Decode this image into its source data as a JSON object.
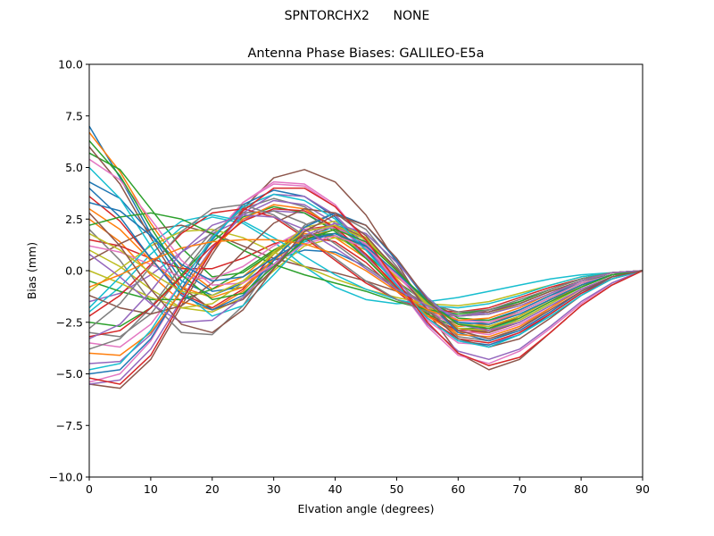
{
  "figure": {
    "suptitle": "SPNTORCHX2      NONE"
  },
  "chart_data": {
    "type": "line",
    "title": "Antenna Phase Biases: GALILEO-E5a",
    "xlabel": "Elvation angle (degrees)",
    "ylabel": "Bias (mm)",
    "xlim": [
      0,
      90
    ],
    "ylim": [
      -10,
      10
    ],
    "xticks": [
      0,
      10,
      20,
      30,
      40,
      50,
      60,
      70,
      80,
      90
    ],
    "xtick_labels": [
      "0",
      "10",
      "20",
      "30",
      "40",
      "50",
      "60",
      "70",
      "80",
      "90"
    ],
    "yticks": [
      -10,
      -7.5,
      -5,
      -2.5,
      0,
      2.5,
      5,
      7.5,
      10
    ],
    "ytick_labels": [
      "−10.0",
      "−7.5",
      "−5.0",
      "−2.5",
      "0.0",
      "2.5",
      "5.0",
      "7.5",
      "10.0"
    ],
    "grid": false,
    "legend": "none",
    "colors": [
      "#1f77b4",
      "#ff7f0e",
      "#2ca02c",
      "#d62728",
      "#9467bd",
      "#8c564b",
      "#e377c2",
      "#7f7f7f",
      "#bcbd22",
      "#17becf"
    ],
    "x": [
      0,
      5,
      10,
      15,
      20,
      25,
      30,
      35,
      40,
      45,
      50,
      55,
      60,
      65,
      70,
      75,
      80,
      85,
      90
    ],
    "series": [
      {
        "values": [
          7.0,
          4.5,
          1.8,
          -0.5,
          -1.2,
          -0.6,
          0.5,
          1.0,
          0.9,
          0.2,
          -0.8,
          -1.7,
          -2.2,
          -2.0,
          -1.5,
          -0.9,
          -0.4,
          -0.1,
          0.0
        ]
      },
      {
        "values": [
          6.7,
          4.8,
          2.3,
          0.2,
          -0.9,
          -0.3,
          1.0,
          1.8,
          1.6,
          0.6,
          -0.8,
          -2.0,
          -2.7,
          -2.6,
          -2.0,
          -1.3,
          -0.6,
          -0.2,
          0.0
        ]
      },
      {
        "values": [
          5.7,
          4.9,
          3.0,
          1.1,
          -0.3,
          -0.1,
          0.9,
          1.7,
          1.7,
          0.8,
          -0.5,
          -1.6,
          -2.2,
          -2.1,
          -1.6,
          -1.0,
          -0.5,
          -0.2,
          0.0
        ]
      },
      {
        "values": [
          3.6,
          2.4,
          0.6,
          -1.1,
          -1.8,
          -0.9,
          0.8,
          2.0,
          2.2,
          1.1,
          -0.6,
          -2.2,
          -3.0,
          -2.9,
          -2.2,
          -1.4,
          -0.7,
          -0.2,
          0.0
        ]
      },
      {
        "values": [
          -1.5,
          -1.1,
          -0.2,
          0.9,
          1.8,
          2.5,
          2.9,
          2.8,
          2.0,
          0.7,
          -0.7,
          -1.8,
          -2.2,
          -2.0,
          -1.5,
          -0.9,
          -0.4,
          -0.1,
          0.0
        ]
      },
      {
        "values": [
          -5.5,
          -5.7,
          -4.3,
          -1.7,
          0.8,
          3.0,
          4.5,
          4.9,
          4.3,
          2.7,
          0.4,
          -2.0,
          -4.0,
          -4.8,
          -4.3,
          -3.0,
          -1.7,
          -0.7,
          0.0
        ]
      },
      {
        "values": [
          -5.4,
          -5.0,
          -3.4,
          -0.9,
          1.5,
          3.3,
          4.2,
          4.1,
          3.1,
          1.4,
          -0.6,
          -2.4,
          -3.5,
          -3.6,
          -3.0,
          -2.0,
          -1.0,
          -0.3,
          0.0
        ]
      },
      {
        "values": [
          -3.0,
          -3.2,
          -2.1,
          -0.2,
          1.7,
          3.0,
          3.5,
          3.1,
          2.0,
          0.6,
          -0.9,
          -2.0,
          -2.6,
          -2.5,
          -1.9,
          -1.2,
          -0.5,
          -0.1,
          0.0
        ]
      },
      {
        "values": [
          1.0,
          0.2,
          -0.9,
          -1.8,
          -2.0,
          -1.3,
          0.0,
          1.2,
          1.6,
          1.0,
          -0.3,
          -1.5,
          -2.2,
          -2.1,
          -1.6,
          -1.0,
          -0.5,
          -0.1,
          0.0
        ]
      },
      {
        "values": [
          -2.0,
          -0.8,
          0.8,
          2.1,
          2.6,
          2.3,
          1.4,
          0.2,
          -0.8,
          -1.4,
          -1.6,
          -1.5,
          -1.3,
          -1.0,
          -0.7,
          -0.4,
          -0.2,
          -0.1,
          0.0
        ]
      },
      {
        "values": [
          4.3,
          3.5,
          1.8,
          0.0,
          -1.0,
          -0.8,
          0.3,
          1.4,
          1.8,
          1.2,
          -0.2,
          -1.6,
          -2.4,
          -2.4,
          -1.9,
          -1.2,
          -0.6,
          -0.2,
          0.0
        ]
      },
      {
        "values": [
          2.5,
          1.4,
          -0.2,
          -1.5,
          -1.9,
          -1.0,
          0.6,
          1.9,
          2.2,
          1.3,
          -0.4,
          -2.1,
          -3.0,
          -3.0,
          -2.3,
          -1.5,
          -0.7,
          -0.2,
          0.0
        ]
      },
      {
        "values": [
          -2.5,
          -2.7,
          -1.8,
          -0.2,
          1.4,
          2.6,
          3.1,
          2.8,
          1.9,
          0.6,
          -0.9,
          -2.1,
          -2.8,
          -2.8,
          -2.2,
          -1.4,
          -0.7,
          -0.2,
          0.0
        ]
      },
      {
        "values": [
          1.5,
          1.2,
          0.6,
          0.1,
          0.1,
          0.6,
          1.3,
          1.7,
          1.4,
          0.4,
          -1.0,
          -2.2,
          -2.9,
          -2.8,
          -2.2,
          -1.4,
          -0.7,
          -0.2,
          0.0
        ]
      },
      {
        "values": [
          -4.5,
          -4.4,
          -3.1,
          -1.0,
          1.1,
          2.7,
          3.4,
          3.2,
          2.3,
          1.0,
          -0.5,
          -1.9,
          -2.8,
          -2.9,
          -2.4,
          -1.6,
          -0.8,
          -0.2,
          0.0
        ]
      },
      {
        "values": [
          0.5,
          1.3,
          2.0,
          2.2,
          1.8,
          1.2,
          0.6,
          0.2,
          -0.1,
          -0.5,
          -1.0,
          -1.6,
          -2.0,
          -2.0,
          -1.6,
          -1.0,
          -0.5,
          -0.1,
          0.0
        ]
      },
      {
        "values": [
          -3.5,
          -3.7,
          -2.6,
          -0.6,
          1.6,
          3.3,
          4.3,
          4.2,
          3.2,
          1.4,
          -0.7,
          -2.7,
          -4.1,
          -4.5,
          -3.9,
          -2.8,
          -1.6,
          -0.6,
          0.0
        ]
      },
      {
        "values": [
          2.0,
          0.5,
          -1.5,
          -3.0,
          -3.1,
          -1.7,
          0.5,
          2.2,
          2.8,
          2.0,
          0.2,
          -1.8,
          -3.2,
          -3.4,
          -2.8,
          -1.8,
          -0.9,
          -0.3,
          0.0
        ]
      },
      {
        "values": [
          -1.0,
          0.1,
          1.2,
          1.9,
          2.0,
          1.6,
          0.9,
          0.2,
          -0.4,
          -0.9,
          -1.3,
          -1.6,
          -1.7,
          -1.5,
          -1.1,
          -0.7,
          -0.3,
          -0.1,
          0.0
        ]
      },
      {
        "values": [
          5.0,
          3.5,
          1.2,
          -1.0,
          -2.2,
          -1.7,
          -0.2,
          1.4,
          2.2,
          1.8,
          0.4,
          -1.3,
          -2.5,
          -2.8,
          -2.4,
          -1.6,
          -0.8,
          -0.2,
          0.0
        ]
      },
      {
        "values": [
          -5.0,
          -4.8,
          -3.3,
          -0.9,
          1.5,
          3.2,
          3.9,
          3.6,
          2.6,
          1.1,
          -0.7,
          -2.3,
          -3.4,
          -3.6,
          -3.1,
          -2.1,
          -1.1,
          -0.3,
          0.0
        ]
      },
      {
        "values": [
          3.0,
          2.0,
          0.5,
          -0.8,
          -1.3,
          -0.8,
          0.5,
          1.6,
          2.0,
          1.4,
          0.0,
          -1.6,
          -2.6,
          -2.7,
          -2.2,
          -1.4,
          -0.7,
          -0.2,
          0.0
        ]
      },
      {
        "values": [
          -0.5,
          -1.0,
          -1.4,
          -1.4,
          -0.9,
          0.0,
          1.0,
          1.7,
          1.8,
          1.1,
          -0.1,
          -1.4,
          -2.3,
          -2.4,
          -2.0,
          -1.3,
          -0.6,
          -0.2,
          0.0
        ]
      },
      {
        "values": [
          -2.2,
          -1.2,
          0.3,
          1.8,
          2.8,
          3.0,
          2.6,
          1.6,
          0.5,
          -0.6,
          -1.4,
          -1.9,
          -2.0,
          -1.8,
          -1.3,
          -0.8,
          -0.4,
          -0.1,
          0.0
        ]
      },
      {
        "values": [
          -5.5,
          -5.3,
          -3.8,
          -1.4,
          1.0,
          2.8,
          3.7,
          3.6,
          2.7,
          1.2,
          -0.7,
          -2.6,
          -3.9,
          -4.3,
          -3.8,
          -2.7,
          -1.5,
          -0.6,
          0.0
        ]
      },
      {
        "values": [
          6.0,
          4.2,
          1.6,
          -0.8,
          -1.9,
          -1.4,
          0.1,
          1.6,
          2.2,
          1.6,
          0.1,
          -1.6,
          -2.8,
          -3.0,
          -2.5,
          -1.7,
          -0.9,
          -0.3,
          0.0
        ]
      },
      {
        "values": [
          1.2,
          0.9,
          0.3,
          -0.3,
          -0.4,
          0.2,
          1.2,
          2.0,
          2.1,
          1.3,
          -0.2,
          -1.8,
          -2.9,
          -3.1,
          -2.6,
          -1.8,
          -0.9,
          -0.3,
          0.0
        ]
      },
      {
        "values": [
          -3.8,
          -3.3,
          -1.8,
          0.2,
          1.9,
          2.8,
          2.9,
          2.3,
          1.3,
          0.2,
          -0.8,
          -1.6,
          -2.0,
          -1.9,
          -1.5,
          -0.9,
          -0.4,
          -0.1,
          0.0
        ]
      },
      {
        "values": [
          0.0,
          -0.6,
          -1.3,
          -1.8,
          -1.6,
          -0.6,
          0.9,
          2.1,
          2.4,
          1.6,
          0.0,
          -1.7,
          -2.8,
          -2.9,
          -2.4,
          -1.6,
          -0.8,
          -0.2,
          0.0
        ]
      },
      {
        "values": [
          -1.8,
          -0.3,
          1.3,
          2.4,
          2.7,
          2.4,
          1.6,
          0.7,
          -0.2,
          -0.9,
          -1.4,
          -1.7,
          -1.8,
          -1.6,
          -1.2,
          -0.7,
          -0.3,
          -0.1,
          0.0
        ]
      },
      {
        "values": [
          4.0,
          2.6,
          0.6,
          -1.2,
          -1.9,
          -1.2,
          0.5,
          2.1,
          2.8,
          2.2,
          0.5,
          -1.5,
          -3.0,
          -3.4,
          -2.9,
          -2.0,
          -1.0,
          -0.3,
          0.0
        ]
      },
      {
        "values": [
          -4.0,
          -4.1,
          -3.0,
          -1.0,
          1.0,
          2.5,
          3.2,
          3.0,
          2.1,
          0.8,
          -0.8,
          -2.2,
          -3.1,
          -3.2,
          -2.7,
          -1.8,
          -0.9,
          -0.3,
          0.0
        ]
      },
      {
        "values": [
          2.2,
          2.6,
          2.8,
          2.5,
          1.8,
          1.0,
          0.3,
          -0.2,
          -0.6,
          -1.0,
          -1.5,
          -1.9,
          -2.1,
          -1.9,
          -1.5,
          -0.9,
          -0.4,
          -0.1,
          0.0
        ]
      },
      {
        "values": [
          -3.2,
          -2.9,
          -1.8,
          -0.3,
          1.2,
          2.4,
          3.0,
          2.9,
          2.1,
          0.8,
          -0.8,
          -2.3,
          -3.3,
          -3.5,
          -3.0,
          -2.1,
          -1.1,
          -0.4,
          0.0
        ]
      },
      {
        "values": [
          0.8,
          -0.3,
          -1.6,
          -2.5,
          -2.4,
          -1.3,
          0.3,
          1.7,
          2.3,
          1.8,
          0.4,
          -1.3,
          -2.6,
          -2.9,
          -2.5,
          -1.7,
          -0.9,
          -0.3,
          0.0
        ]
      },
      {
        "values": [
          -1.2,
          -1.8,
          -2.1,
          -1.7,
          -0.6,
          0.9,
          2.3,
          3.0,
          2.8,
          1.7,
          0.0,
          -1.9,
          -3.3,
          -3.7,
          -3.3,
          -2.3,
          -1.2,
          -0.4,
          0.0
        ]
      },
      {
        "values": [
          5.4,
          4.4,
          2.5,
          0.5,
          -0.7,
          -0.6,
          0.3,
          1.3,
          1.7,
          1.1,
          -0.2,
          -1.5,
          -2.4,
          -2.5,
          -2.0,
          -1.3,
          -0.6,
          -0.2,
          0.0
        ]
      },
      {
        "values": [
          -2.8,
          -1.6,
          0.2,
          1.9,
          3.0,
          3.2,
          2.7,
          1.7,
          0.6,
          -0.5,
          -1.4,
          -2.0,
          -2.2,
          -1.9,
          -1.4,
          -0.9,
          -0.4,
          -0.1,
          0.0
        ]
      },
      {
        "values": [
          1.8,
          1.0,
          -0.1,
          -1.0,
          -1.2,
          -0.5,
          0.8,
          1.9,
          2.2,
          1.5,
          0.0,
          -1.6,
          -2.6,
          -2.7,
          -2.2,
          -1.4,
          -0.7,
          -0.2,
          0.0
        ]
      },
      {
        "values": [
          -4.8,
          -4.5,
          -2.9,
          -0.6,
          1.6,
          3.1,
          3.7,
          3.4,
          2.5,
          1.0,
          -0.7,
          -2.3,
          -3.4,
          -3.7,
          -3.1,
          -2.2,
          -1.2,
          -0.4,
          0.0
        ]
      },
      {
        "values": [
          3.3,
          2.9,
          1.7,
          0.3,
          -0.5,
          -0.3,
          0.6,
          1.5,
          1.8,
          1.2,
          -0.1,
          -1.5,
          -2.5,
          -2.6,
          -2.1,
          -1.4,
          -0.7,
          -0.2,
          0.0
        ]
      },
      {
        "values": [
          -0.8,
          -0.2,
          0.5,
          1.1,
          1.4,
          1.5,
          1.5,
          1.3,
          0.8,
          0.0,
          -1.0,
          -1.9,
          -2.4,
          -2.3,
          -1.8,
          -1.1,
          -0.5,
          -0.1,
          0.0
        ]
      },
      {
        "values": [
          6.3,
          4.6,
          2.1,
          -0.2,
          -1.4,
          -1.1,
          0.2,
          1.5,
          2.0,
          1.4,
          0.0,
          -1.5,
          -2.6,
          -2.8,
          -2.3,
          -1.5,
          -0.8,
          -0.2,
          0.0
        ]
      },
      {
        "values": [
          -5.2,
          -5.5,
          -4.1,
          -1.5,
          1.0,
          2.9,
          4.0,
          4.0,
          3.1,
          1.5,
          -0.5,
          -2.5,
          -4.0,
          -4.6,
          -4.2,
          -3.0,
          -1.7,
          -0.7,
          0.0
        ]
      },
      {
        "values": [
          -3.3,
          -2.6,
          -1.0,
          0.9,
          2.2,
          2.7,
          2.6,
          2.0,
          1.1,
          0.1,
          -0.9,
          -1.7,
          -2.2,
          -2.1,
          -1.7,
          -1.1,
          -0.5,
          -0.1,
          0.0
        ]
      },
      {
        "values": [
          2.8,
          1.2,
          -0.9,
          -2.6,
          -3.0,
          -1.9,
          0.1,
          1.9,
          2.7,
          2.2,
          0.6,
          -1.4,
          -2.9,
          -3.3,
          -2.8,
          -1.9,
          -1.0,
          -0.3,
          0.0
        ]
      }
    ]
  }
}
